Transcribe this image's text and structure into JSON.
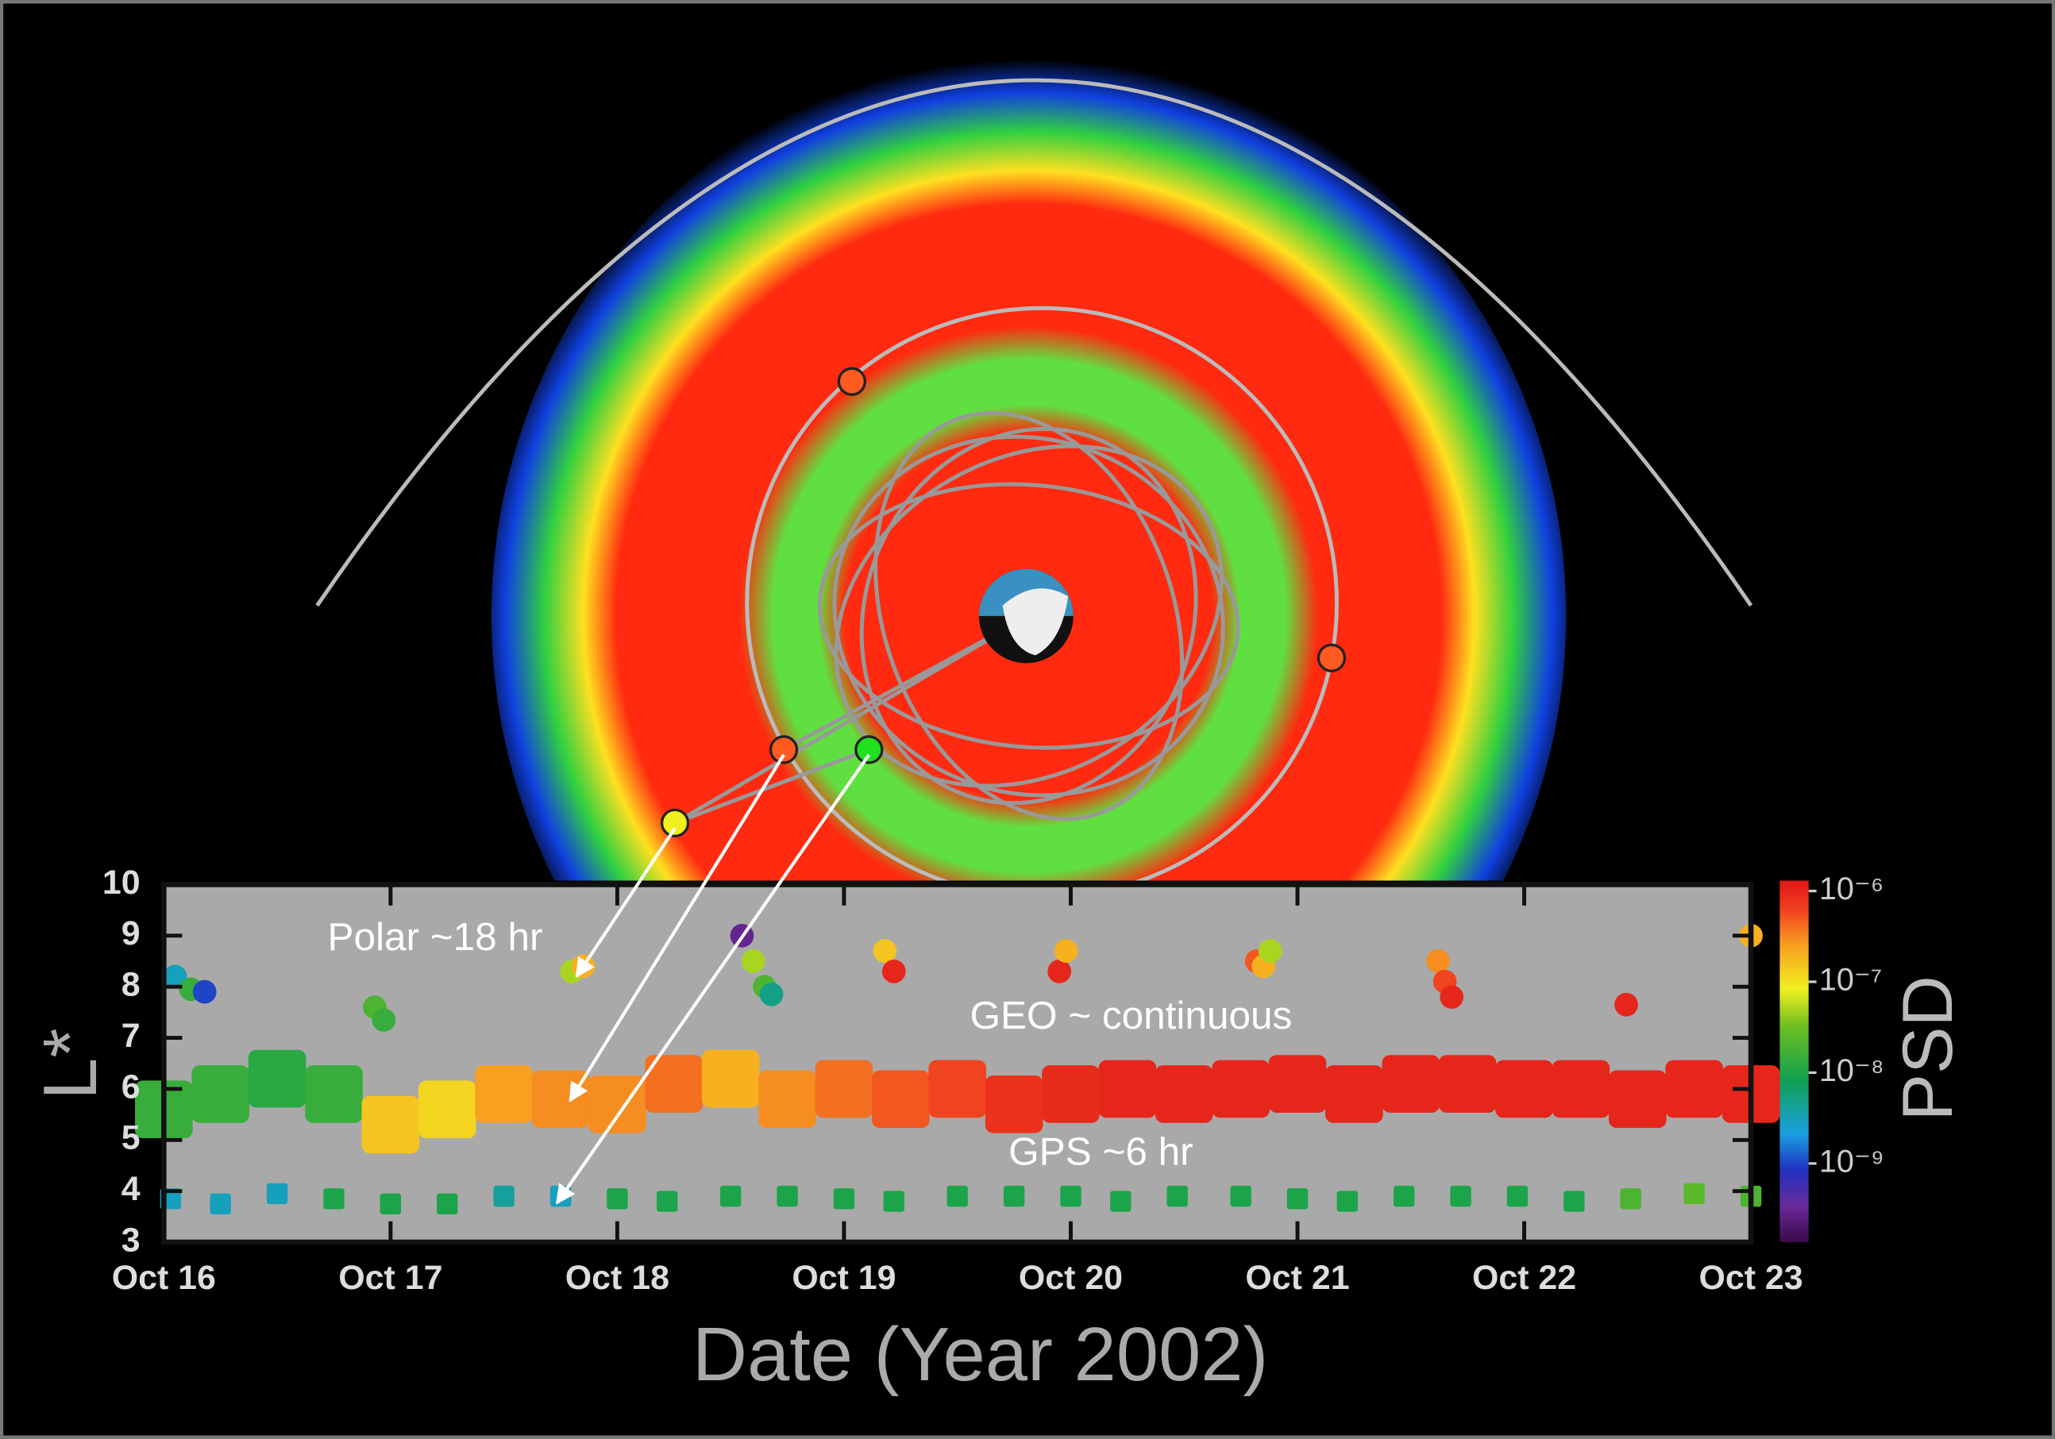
{
  "chart_data": {
    "type": "scatter",
    "ylabel": "L*",
    "xlabel": "Date (Year 2002)",
    "xlim": [
      16,
      23
    ],
    "xticks": [
      {
        "value": 16,
        "label": "Oct 16"
      },
      {
        "value": 17,
        "label": "Oct 17"
      },
      {
        "value": 18,
        "label": "Oct 18"
      },
      {
        "value": 19,
        "label": "Oct 19"
      },
      {
        "value": 20,
        "label": "Oct 20"
      },
      {
        "value": 21,
        "label": "Oct 21"
      },
      {
        "value": 22,
        "label": "Oct 22"
      },
      {
        "value": 23,
        "label": "Oct 23"
      }
    ],
    "ylim": [
      3,
      10
    ],
    "yticks": [
      3,
      4,
      5,
      6,
      7,
      8,
      9,
      10
    ],
    "colorbar": {
      "label": "PSD",
      "log": true,
      "lim": [
        1.36e-10,
        1.3e-06
      ],
      "ticks": [
        {
          "value": 1e-06,
          "label": "10⁻⁶"
        },
        {
          "value": 1e-07,
          "label": "10⁻⁷"
        },
        {
          "value": 1e-08,
          "label": "10⁻⁸"
        },
        {
          "value": 1e-09,
          "label": "10⁻⁹"
        }
      ]
    },
    "annotations": [
      "Polar ~18 hr",
      "GEO ~ continuous",
      "GPS ~6 hr"
    ],
    "series": [
      {
        "marker": "circle",
        "x": [
          16.05,
          16.12,
          16.18,
          16.93,
          16.97,
          17.8,
          17.85,
          18.55,
          18.6,
          18.65,
          18.68,
          19.18,
          19.22,
          19.95,
          19.98,
          20.82,
          20.85,
          20.88,
          21.62,
          21.65,
          21.68,
          22.45,
          23.0
        ],
        "values": [
          8.2,
          7.95,
          7.9,
          7.6,
          7.35,
          8.3,
          8.4,
          9.0,
          8.5,
          8.0,
          7.85,
          8.7,
          8.3,
          8.3,
          8.7,
          8.5,
          8.4,
          8.7,
          8.5,
          8.1,
          7.8,
          7.65,
          9.0
        ],
        "psd": [
          3e-09,
          1.5e-08,
          1e-09,
          2e-08,
          1.5e-08,
          5e-08,
          2e-07,
          3e-10,
          5e-08,
          2e-08,
          5e-09,
          1.5e-07,
          1e-06,
          1e-06,
          2e-07,
          5e-07,
          2e-07,
          5e-08,
          3e-07,
          6e-07,
          1e-06,
          1e-06,
          2e-07
        ]
      },
      {
        "marker": "band",
        "x": [
          16.0,
          16.25,
          16.5,
          16.75,
          17.0,
          17.25,
          17.5,
          17.75,
          18.0,
          18.25,
          18.5,
          18.75,
          19.0,
          19.25,
          19.5,
          19.75,
          20.0,
          20.25,
          20.5,
          20.75,
          21.0,
          21.25,
          21.5,
          21.75,
          22.0,
          22.25,
          22.5,
          22.75,
          23.0
        ],
        "values": [
          5.6,
          5.9,
          6.2,
          5.9,
          5.3,
          5.6,
          5.9,
          5.8,
          5.7,
          6.1,
          6.2,
          5.8,
          6.0,
          5.8,
          6.0,
          5.7,
          5.9,
          6.0,
          5.9,
          6.0,
          6.1,
          5.9,
          6.1,
          6.1,
          6.0,
          6.0,
          5.8,
          6.0,
          5.9
        ],
        "psd": [
          1.5e-08,
          1.5e-08,
          1.2e-08,
          1.5e-08,
          1.5e-07,
          1.2e-07,
          2.5e-07,
          3e-07,
          3e-07,
          4e-07,
          2e-07,
          3e-07,
          4e-07,
          5e-07,
          6e-07,
          8e-07,
          9e-07,
          1e-06,
          1e-06,
          1e-06,
          1e-06,
          1e-06,
          1e-06,
          1e-06,
          1e-06,
          1e-06,
          1e-06,
          1e-06,
          1e-06
        ]
      },
      {
        "marker": "square",
        "x": [
          16.03,
          16.25,
          16.5,
          16.75,
          17.0,
          17.25,
          17.5,
          17.75,
          18.0,
          18.22,
          18.5,
          18.75,
          19.0,
          19.22,
          19.5,
          19.75,
          20.0,
          20.22,
          20.47,
          20.75,
          21.0,
          21.22,
          21.47,
          21.72,
          21.97,
          22.22,
          22.47,
          22.75,
          23.0
        ],
        "values": [
          3.85,
          3.75,
          3.95,
          3.85,
          3.75,
          3.75,
          3.9,
          3.9,
          3.85,
          3.8,
          3.9,
          3.9,
          3.85,
          3.8,
          3.9,
          3.9,
          3.9,
          3.8,
          3.9,
          3.9,
          3.85,
          3.8,
          3.9,
          3.9,
          3.9,
          3.8,
          3.85,
          3.95,
          3.9
        ],
        "psd": [
          3e-09,
          3e-09,
          3e-09,
          1e-08,
          1e-08,
          1e-08,
          4e-09,
          3e-09,
          1e-08,
          1e-08,
          1e-08,
          1e-08,
          1e-08,
          1e-08,
          1e-08,
          1e-08,
          1e-08,
          1e-08,
          1e-08,
          1e-08,
          1e-08,
          1e-08,
          1e-08,
          1e-08,
          1e-08,
          1e-08,
          2e-08,
          2.5e-08,
          2e-08
        ]
      }
    ]
  }
}
